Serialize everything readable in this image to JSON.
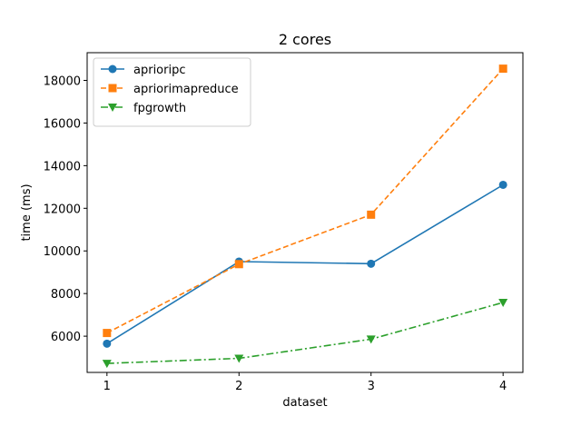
{
  "chart_data": {
    "type": "line",
    "title": "2 cores",
    "xlabel": "dataset",
    "ylabel": "time (ms)",
    "x": [
      1,
      2,
      3,
      4
    ],
    "xticks": [
      "1",
      "2",
      "3",
      "4"
    ],
    "xlim": [
      0.85,
      4.15
    ],
    "ylim": [
      4300,
      19300
    ],
    "yticks": [
      6000,
      8000,
      10000,
      12000,
      14000,
      16000,
      18000
    ],
    "grid": false,
    "legend_position": "top-left",
    "series": [
      {
        "name": "aprioripc",
        "values": [
          5650,
          9500,
          9400,
          13100
        ],
        "color": "#1f77b4",
        "linestyle": "solid",
        "marker": "circle"
      },
      {
        "name": "apriorimapreduce",
        "values": [
          6150,
          9380,
          11700,
          18550
        ],
        "color": "#ff7f0e",
        "linestyle": "dashed",
        "marker": "square"
      },
      {
        "name": "fpgrowth",
        "values": [
          4720,
          4960,
          5860,
          7580
        ],
        "color": "#2ca02c",
        "linestyle": "dashdot",
        "marker": "triangle-down"
      }
    ]
  }
}
